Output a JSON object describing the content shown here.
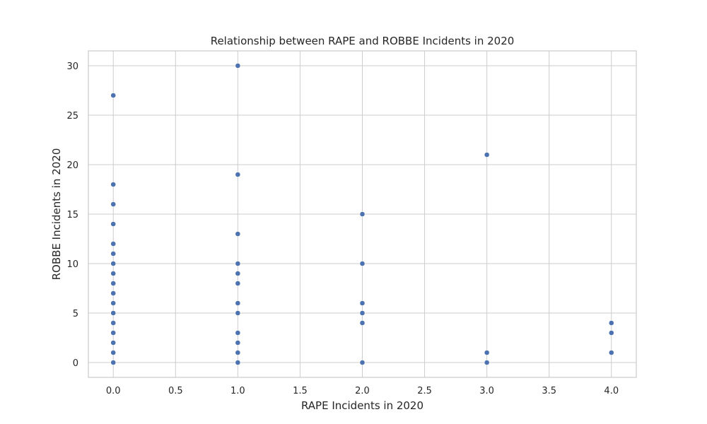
{
  "chart_data": {
    "type": "scatter",
    "title": "Relationship between RAPE and ROBBE Incidents in 2020",
    "xlabel": "RAPE Incidents in 2020",
    "ylabel": "ROBBE Incidents in 2020",
    "xlim": [
      -0.2,
      4.2
    ],
    "ylim": [
      -1.5,
      31.5
    ],
    "xticks": [
      0.0,
      0.5,
      1.0,
      1.5,
      2.0,
      2.5,
      3.0,
      3.5,
      4.0
    ],
    "xtick_labels": [
      "0.0",
      "0.5",
      "1.0",
      "1.5",
      "2.0",
      "2.5",
      "3.0",
      "3.5",
      "4.0"
    ],
    "yticks": [
      0,
      5,
      10,
      15,
      20,
      25,
      30
    ],
    "ytick_labels": [
      "0",
      "5",
      "10",
      "15",
      "20",
      "25",
      "30"
    ],
    "grid": true,
    "marker_color": "#4c72b0",
    "series": [
      {
        "points": [
          {
            "x": 0,
            "y": 0
          },
          {
            "x": 0,
            "y": 1
          },
          {
            "x": 0,
            "y": 2
          },
          {
            "x": 0,
            "y": 3
          },
          {
            "x": 0,
            "y": 4
          },
          {
            "x": 0,
            "y": 5
          },
          {
            "x": 0,
            "y": 6
          },
          {
            "x": 0,
            "y": 7
          },
          {
            "x": 0,
            "y": 8
          },
          {
            "x": 0,
            "y": 9
          },
          {
            "x": 0,
            "y": 10
          },
          {
            "x": 0,
            "y": 11
          },
          {
            "x": 0,
            "y": 12
          },
          {
            "x": 0,
            "y": 14
          },
          {
            "x": 0,
            "y": 16
          },
          {
            "x": 0,
            "y": 18
          },
          {
            "x": 0,
            "y": 27
          },
          {
            "x": 1,
            "y": 0
          },
          {
            "x": 1,
            "y": 1
          },
          {
            "x": 1,
            "y": 2
          },
          {
            "x": 1,
            "y": 3
          },
          {
            "x": 1,
            "y": 5
          },
          {
            "x": 1,
            "y": 6
          },
          {
            "x": 1,
            "y": 8
          },
          {
            "x": 1,
            "y": 9
          },
          {
            "x": 1,
            "y": 10
          },
          {
            "x": 1,
            "y": 13
          },
          {
            "x": 1,
            "y": 19
          },
          {
            "x": 1,
            "y": 30
          },
          {
            "x": 2,
            "y": 0
          },
          {
            "x": 2,
            "y": 4
          },
          {
            "x": 2,
            "y": 5
          },
          {
            "x": 2,
            "y": 6
          },
          {
            "x": 2,
            "y": 10
          },
          {
            "x": 2,
            "y": 15
          },
          {
            "x": 3,
            "y": 0
          },
          {
            "x": 3,
            "y": 1
          },
          {
            "x": 3,
            "y": 21
          },
          {
            "x": 4,
            "y": 1
          },
          {
            "x": 4,
            "y": 3
          },
          {
            "x": 4,
            "y": 4
          }
        ]
      }
    ]
  }
}
